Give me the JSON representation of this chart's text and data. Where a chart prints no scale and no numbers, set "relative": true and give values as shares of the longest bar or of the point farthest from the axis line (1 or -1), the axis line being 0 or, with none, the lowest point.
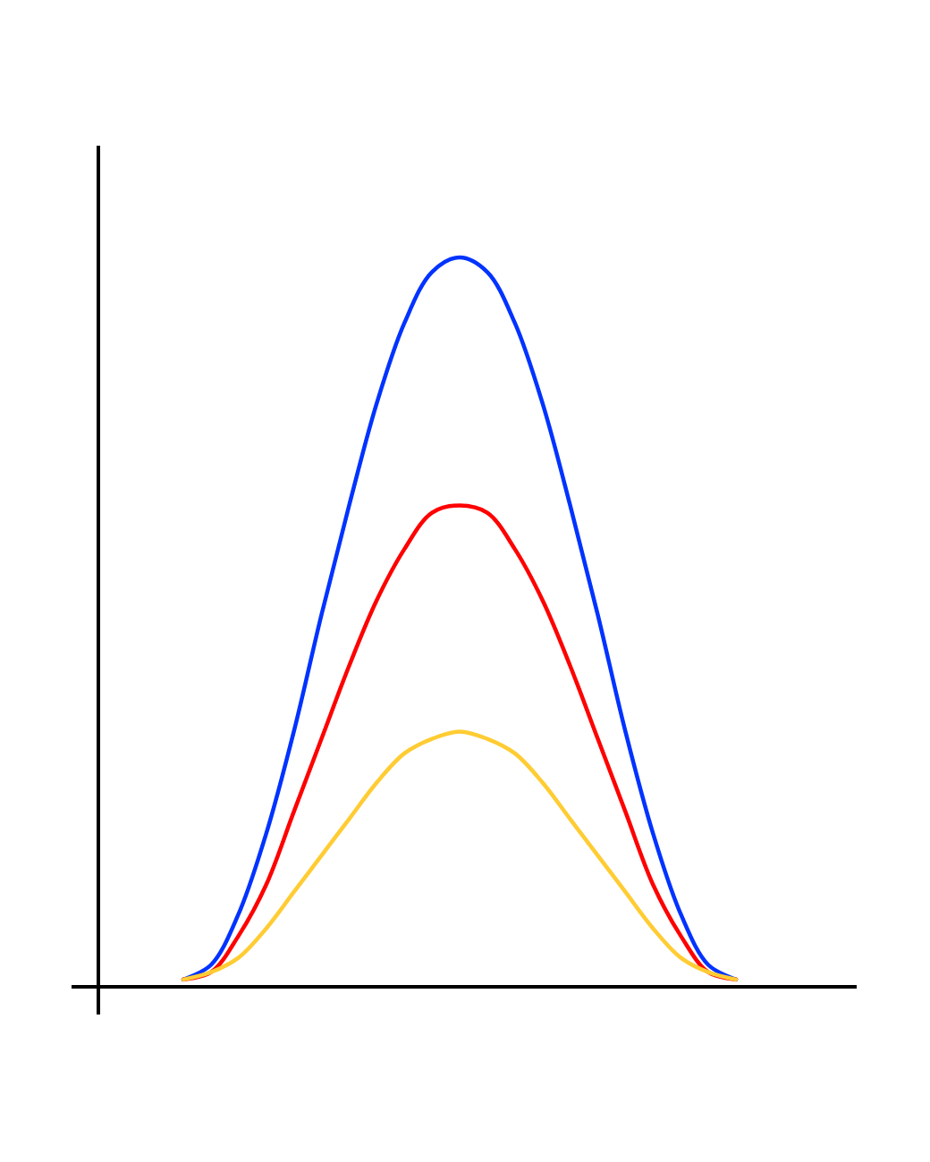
{
  "chart_data": {
    "type": "line",
    "relative": true,
    "categories": [
      null,
      null,
      null,
      null,
      null,
      null,
      null,
      null,
      null,
      null,
      null,
      null,
      null,
      null,
      null,
      null,
      null,
      null,
      null,
      null,
      null
    ],
    "series": [
      {
        "color": "#0033ff",
        "values": [
          0.01,
          0.03,
          0.1,
          0.21,
          0.35,
          0.51,
          0.66,
          0.8,
          0.91,
          0.98,
          1,
          0.98,
          0.91,
          0.8,
          0.66,
          0.51,
          0.35,
          0.21,
          0.1,
          0.03,
          0.01
        ]
      },
      {
        "color": "#ff0000",
        "values": [
          0.01,
          0.02,
          0.07,
          0.14,
          0.24,
          0.34,
          0.44,
          0.53,
          0.6,
          0.65,
          0.66,
          0.65,
          0.6,
          0.53,
          0.44,
          0.34,
          0.24,
          0.14,
          0.07,
          0.02,
          0.01
        ]
      },
      {
        "color": "#ffcc33",
        "values": [
          0.01,
          0.02,
          0.04,
          0.08,
          0.13,
          0.18,
          0.23,
          0.28,
          0.32,
          0.34,
          0.35,
          0.34,
          0.32,
          0.28,
          0.23,
          0.18,
          0.13,
          0.08,
          0.04,
          0.02,
          0.01
        ]
      }
    ]
  }
}
